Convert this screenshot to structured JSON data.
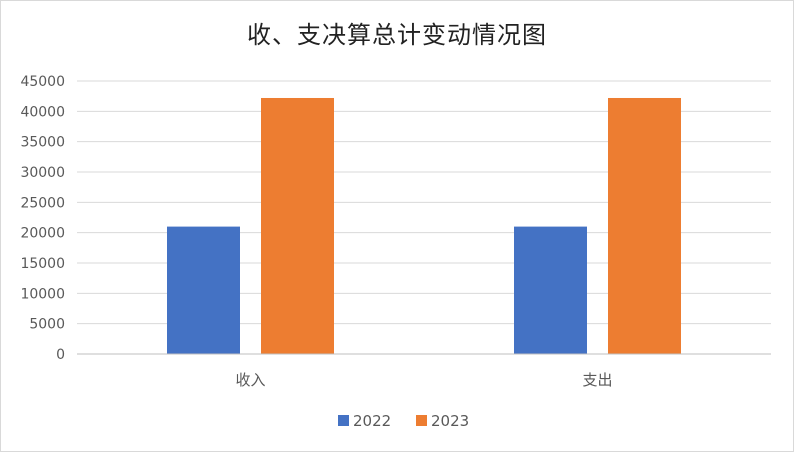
{
  "chart_data": {
    "type": "bar",
    "title": "收、支决算总计变动情况图",
    "categories": [
      "收入",
      "支出"
    ],
    "series": [
      {
        "name": "2022",
        "values": [
          21000,
          21000
        ],
        "color": "#4472C4"
      },
      {
        "name": "2023",
        "values": [
          42200,
          42200
        ],
        "color": "#ED7D31"
      }
    ],
    "ylim": [
      0,
      45000
    ],
    "yticks": [
      0,
      5000,
      10000,
      15000,
      20000,
      25000,
      30000,
      35000,
      40000,
      45000
    ],
    "grid": true,
    "legend_position": "bottom"
  }
}
